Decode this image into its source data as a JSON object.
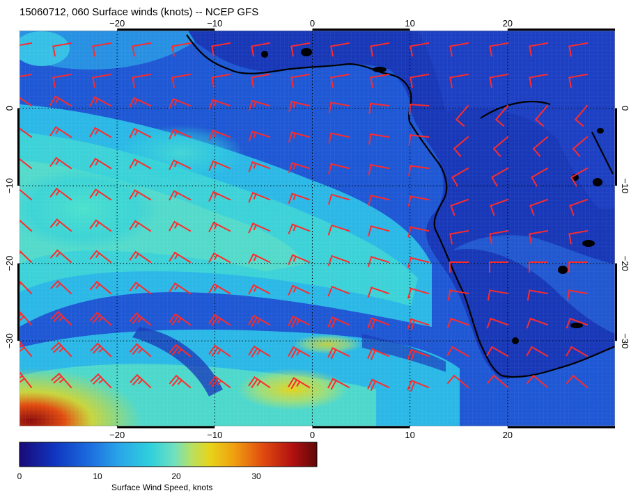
{
  "title": "15060712, 060 Surface winds (knots) -- NCEP GFS",
  "map": {
    "lon_range": [
      -30,
      31
    ],
    "lat_range": [
      10,
      -41
    ],
    "lon_ticks": [
      -20,
      -10,
      0,
      10,
      20
    ],
    "lat_ticks_left": [
      0,
      -10,
      -20,
      -30
    ],
    "lat_ticks_right": [
      0,
      -10,
      -20,
      -30
    ],
    "grid_lon": [
      -30,
      -20,
      -10,
      0,
      10,
      20
    ],
    "grid_lat": [
      0,
      -10,
      -20,
      -30
    ],
    "lon_tick_labels": [
      "−20",
      "−10",
      "0",
      "10",
      "20"
    ],
    "lat_tick_labels": [
      "0",
      "−10",
      "−20",
      "−30"
    ],
    "gridlines": true,
    "barb_color": "#ff2a2a",
    "coast_color": "#000000"
  },
  "colorbar": {
    "label": "Surface Wind Speed, knots",
    "min": 0,
    "max": 38,
    "tick_values": [
      0,
      10,
      20,
      30
    ],
    "tick_labels": [
      "0",
      "10",
      "20",
      "30"
    ],
    "colors": [
      "#1a0a78",
      "#1036c0",
      "#1d6fe0",
      "#2aa8e8",
      "#2fd0dc",
      "#6fe0c0",
      "#b8e060",
      "#e6d41a",
      "#f0a010",
      "#e04a10",
      "#b01010",
      "#600808"
    ]
  }
}
